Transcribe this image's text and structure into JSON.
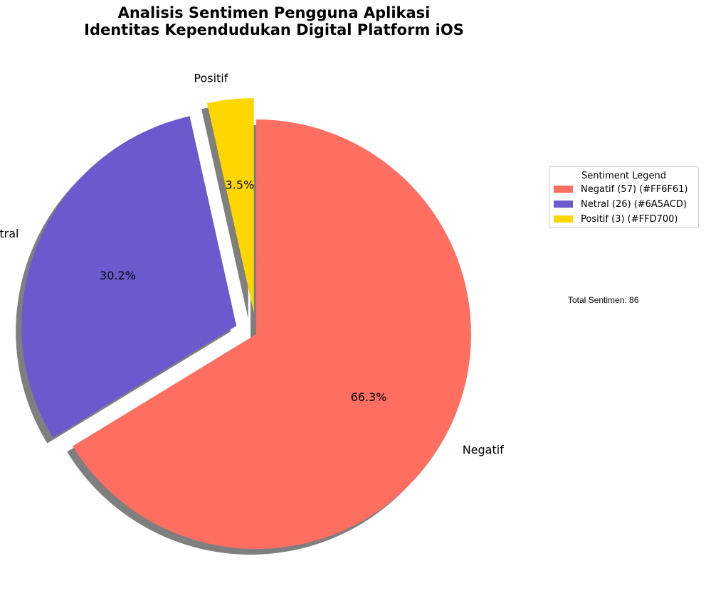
{
  "chart_data": {
    "type": "pie",
    "title_lines": [
      "Analisis Sentimen Pengguna Aplikasi",
      "Identitas Kependudukan Digital Platform iOS"
    ],
    "slices": [
      {
        "label": "Negatif",
        "value": 57,
        "percent_label": "66.3%",
        "color": "#FF6F61",
        "exploded": false
      },
      {
        "label": "Netral",
        "value": 26,
        "percent_label": "30.2%",
        "color": "#6A5ACD",
        "exploded": true
      },
      {
        "label": "Positif",
        "value": 3,
        "percent_label": "3.5%",
        "color": "#FFD700",
        "exploded": true
      }
    ],
    "start_angle_deg": 90,
    "direction": "clockwise",
    "shadow": true,
    "legend": {
      "title": "Sentiment Legend",
      "placement": "right",
      "entries": [
        {
          "label": "Negatif (57) (#FF6F61)",
          "color": "#FF6F61"
        },
        {
          "label": "Netral (26) (#6A5ACD)",
          "color": "#6A5ACD"
        },
        {
          "label": "Positif (3) (#FFD700)",
          "color": "#FFD700"
        }
      ]
    },
    "annotation": "Total Sentimen: 86"
  }
}
